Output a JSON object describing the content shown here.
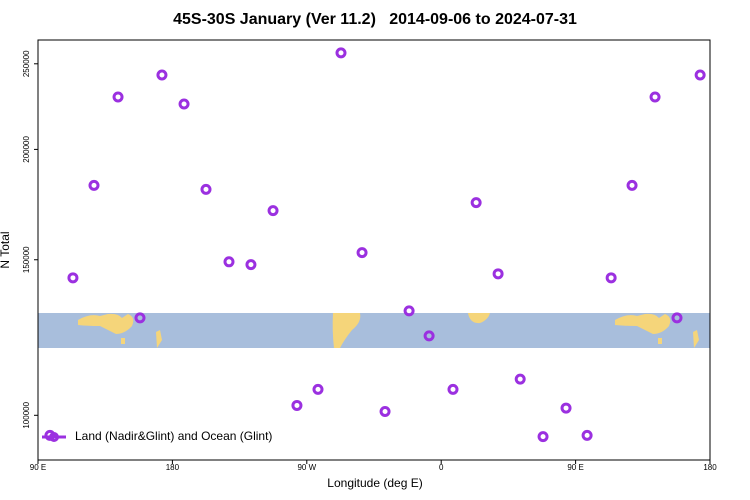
{
  "chart_data": {
    "type": "scatter",
    "title": "45S-30S January (Ver 11.2)   2014-09-06 to 2024-07-31",
    "xlabel": "Longitude (deg E)",
    "ylabel": "N Total",
    "xlim": [
      90,
      540
    ],
    "xticks": [
      {
        "value": 90,
        "label": "90 E"
      },
      180,
      {
        "value": 270,
        "label": "90 W"
      },
      {
        "value": 360,
        "label": "0"
      },
      {
        "value": 450,
        "label": "90 E"
      },
      {
        "value": 540,
        "label": "180"
      }
    ],
    "ylim": [
      89000,
      266000
    ],
    "log_scale": true,
    "yticks": [
      100000,
      150000,
      200000,
      250000
    ],
    "legend": "bottom-left",
    "series": [
      {
        "name": "Land (Nadir&Glint) and Ocean (Glint)",
        "color": "#9b30e0",
        "x": [
          98,
          113.4,
          127.5,
          143.6,
          158.3,
          173,
          187.8,
          202.5,
          217.9,
          232.6,
          247.4,
          263.4,
          277.5,
          292.9,
          307,
          322.4,
          338.5,
          351.9,
          367.9,
          383.4,
          398.1,
          412.9,
          428.2,
          443.6,
          457.7,
          473.8,
          487.8,
          503.2,
          517.9,
          533.4
        ],
        "values": [
          94900,
          143100,
          182100,
          229300,
          128900,
          242800,
          225100,
          180200,
          149200,
          148100,
          170500,
          102600,
          107000,
          257200,
          152800,
          101000,
          131300,
          123000,
          107000,
          174100,
          144600,
          109900,
          94600,
          101900,
          94900,
          143100,
          182100,
          229300,
          128900,
          242800
        ]
      }
    ]
  }
}
